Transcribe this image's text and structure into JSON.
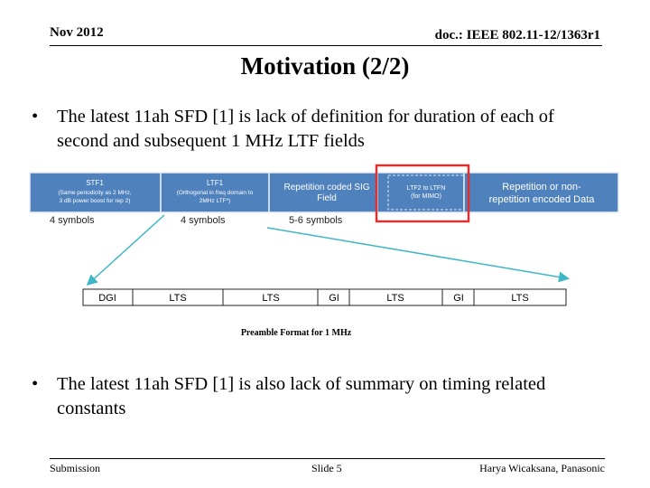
{
  "header": {
    "date": "Nov 2012",
    "doc_id": "doc.: IEEE 802.11-12/1363r1"
  },
  "title": "Motivation (2/2)",
  "bullets": [
    {
      "symbol": "•",
      "text": "The latest 11ah SFD [1] is lack of definition for duration of each of second and subsequent 1 MHz LTF fields"
    },
    {
      "symbol": "•",
      "text": "The latest 11ah SFD [1] is also lack of summary on timing related constants"
    }
  ],
  "figure": {
    "top_fields": [
      {
        "name": "STF1",
        "sub1": "(Same periodicity as 2 MHz,",
        "sub2": "3 dB power boost for rep 2)"
      },
      {
        "name": "LTF1",
        "sub1": "(Orthogonal in freq domain to",
        "sub2": "2MHz LTF*)"
      },
      {
        "name": "Repetition coded  SIG",
        "sub1": "Field"
      },
      {
        "name": "LTF2 to LTFN",
        "sub1": "(for MIMO)"
      },
      {
        "name": "Repetition or non-",
        "sub1": "repetition encoded Data"
      }
    ],
    "symbol_labels": [
      "4 symbols",
      "4 symbols",
      "5-6 symbols"
    ],
    "bottom_fields": [
      "DGI",
      "LTS",
      "LTS",
      "GI",
      "LTS",
      "GI",
      "LTS"
    ],
    "caption": "Preamble Format for 1 MHz",
    "colors": {
      "field_fill": "#4f81bd",
      "arrow": "#3fb6c6",
      "highlight": "#e03030"
    }
  },
  "footer": {
    "left": "Submission",
    "center": "Slide 5",
    "right": "Harya Wicaksana, Panasonic"
  }
}
